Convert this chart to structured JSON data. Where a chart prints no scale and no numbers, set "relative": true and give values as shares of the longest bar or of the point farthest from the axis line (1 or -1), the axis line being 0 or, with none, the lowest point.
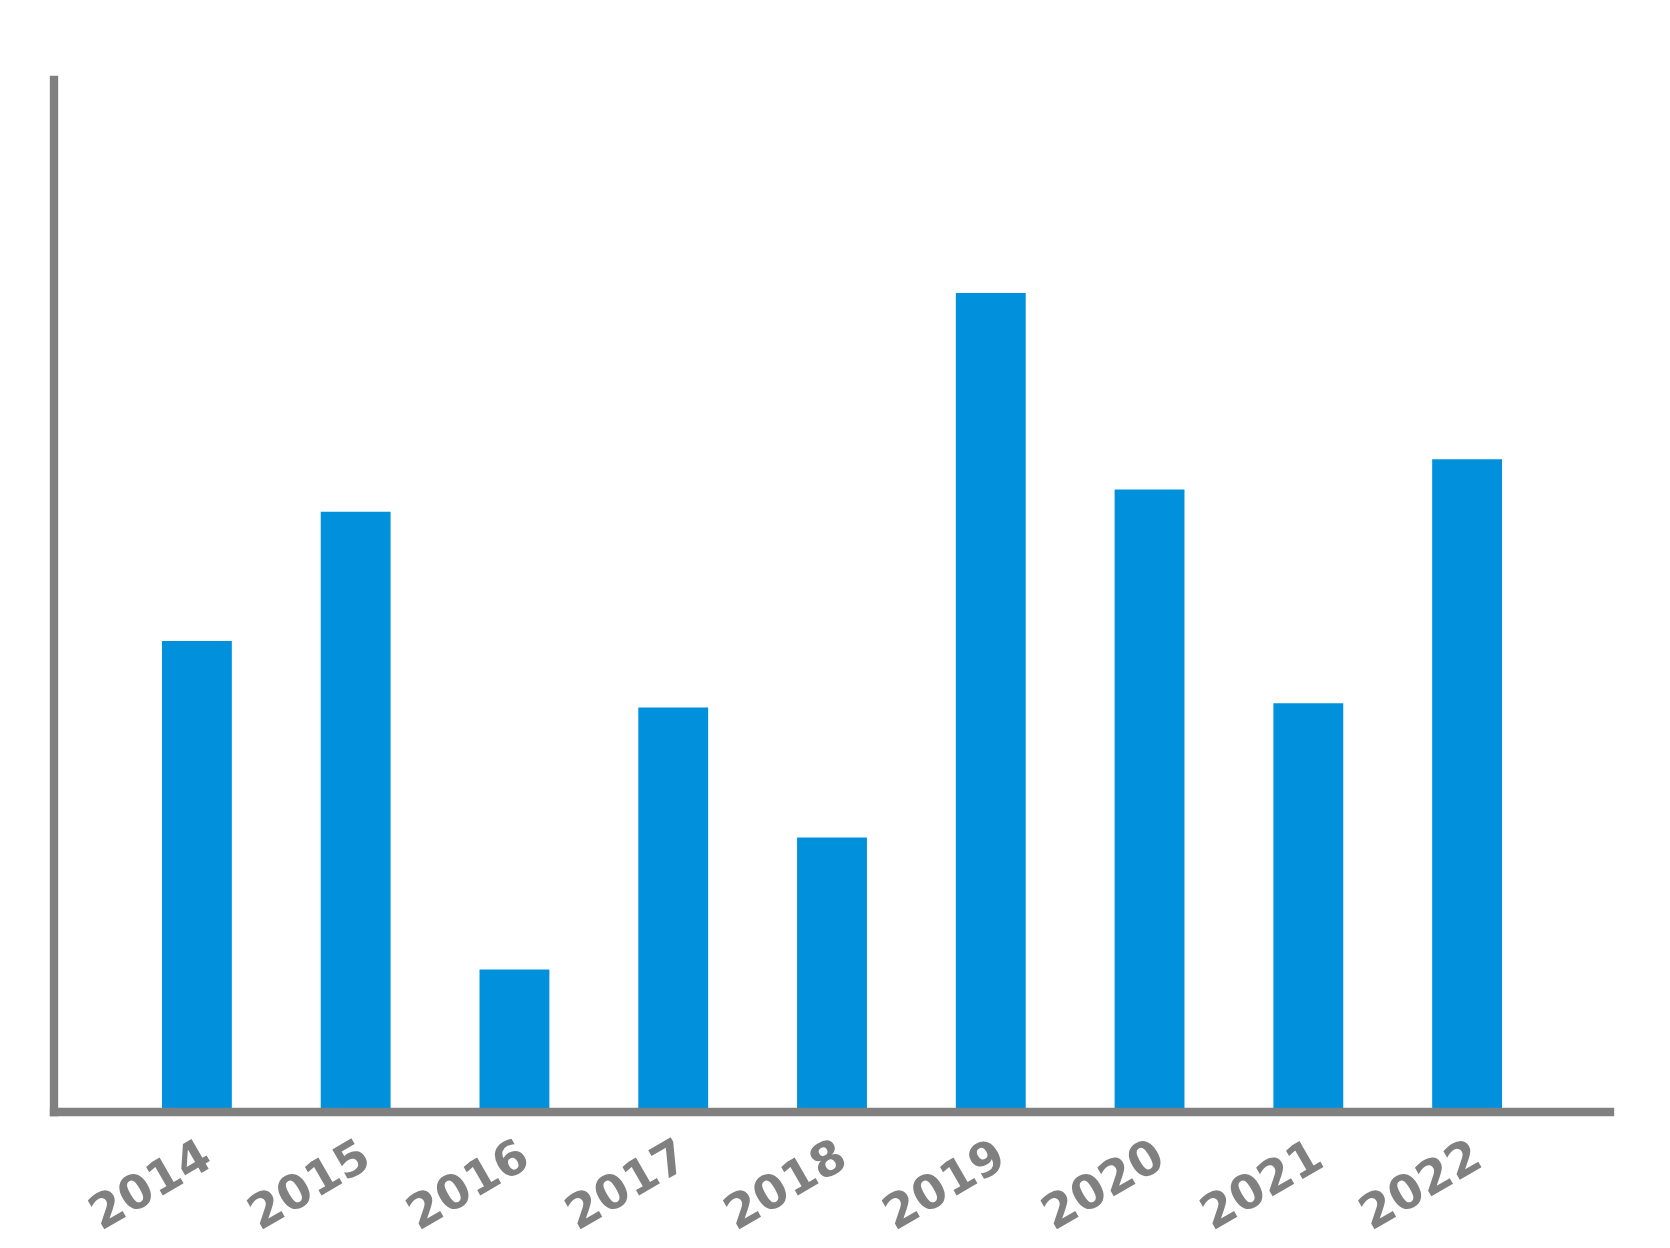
{
  "chart_data": {
    "type": "bar",
    "relative": true,
    "categories": [
      "2014",
      "2015",
      "2016",
      "2017",
      "2018",
      "2019",
      "2020",
      "2021",
      "2022"
    ],
    "values": [
      0.575,
      0.733,
      0.174,
      0.494,
      0.335,
      1,
      0.76,
      0.499,
      0.797
    ],
    "color": "#0090dc",
    "grid": false,
    "legend": false
  }
}
